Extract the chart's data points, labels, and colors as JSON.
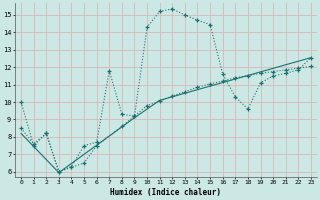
{
  "xlabel": "Humidex (Indice chaleur)",
  "bg_color": "#cce8e4",
  "grid_color": "#dbb8b8",
  "line_color": "#1a7070",
  "xlim": [
    -0.5,
    23.5
  ],
  "ylim": [
    5.7,
    15.7
  ],
  "yticks": [
    6,
    7,
    8,
    9,
    10,
    11,
    12,
    13,
    14,
    15
  ],
  "xticks": [
    0,
    1,
    2,
    3,
    4,
    5,
    6,
    7,
    8,
    9,
    10,
    11,
    12,
    13,
    14,
    15,
    16,
    17,
    18,
    19,
    20,
    21,
    22,
    23
  ],
  "line1_x": [
    0,
    1,
    2,
    3,
    4,
    5,
    6,
    7,
    8,
    9,
    10,
    11,
    12,
    13,
    14,
    15,
    16,
    17,
    18,
    19,
    20,
    21,
    22,
    23
  ],
  "line1_y": [
    10,
    7.5,
    8.2,
    6.0,
    6.3,
    7.5,
    7.7,
    11.8,
    9.3,
    9.2,
    14.3,
    15.2,
    15.35,
    15.0,
    14.7,
    14.45,
    11.6,
    10.3,
    9.6,
    11.1,
    11.5,
    11.65,
    11.85,
    12.55
  ],
  "line2_x": [
    0,
    1,
    2,
    3,
    5,
    6,
    8,
    9,
    10,
    11,
    12,
    13,
    14,
    15,
    16,
    17,
    18,
    19,
    20,
    21,
    22,
    23
  ],
  "line2_y": [
    8.5,
    7.6,
    8.2,
    6.0,
    6.5,
    7.5,
    8.6,
    9.2,
    9.8,
    10.05,
    10.35,
    10.6,
    10.85,
    11.05,
    11.2,
    11.4,
    11.5,
    11.65,
    11.75,
    11.85,
    11.95,
    12.05
  ],
  "line3_x": [
    0,
    3,
    9,
    11,
    23
  ],
  "line3_y": [
    8.2,
    5.95,
    9.1,
    10.1,
    12.55
  ]
}
